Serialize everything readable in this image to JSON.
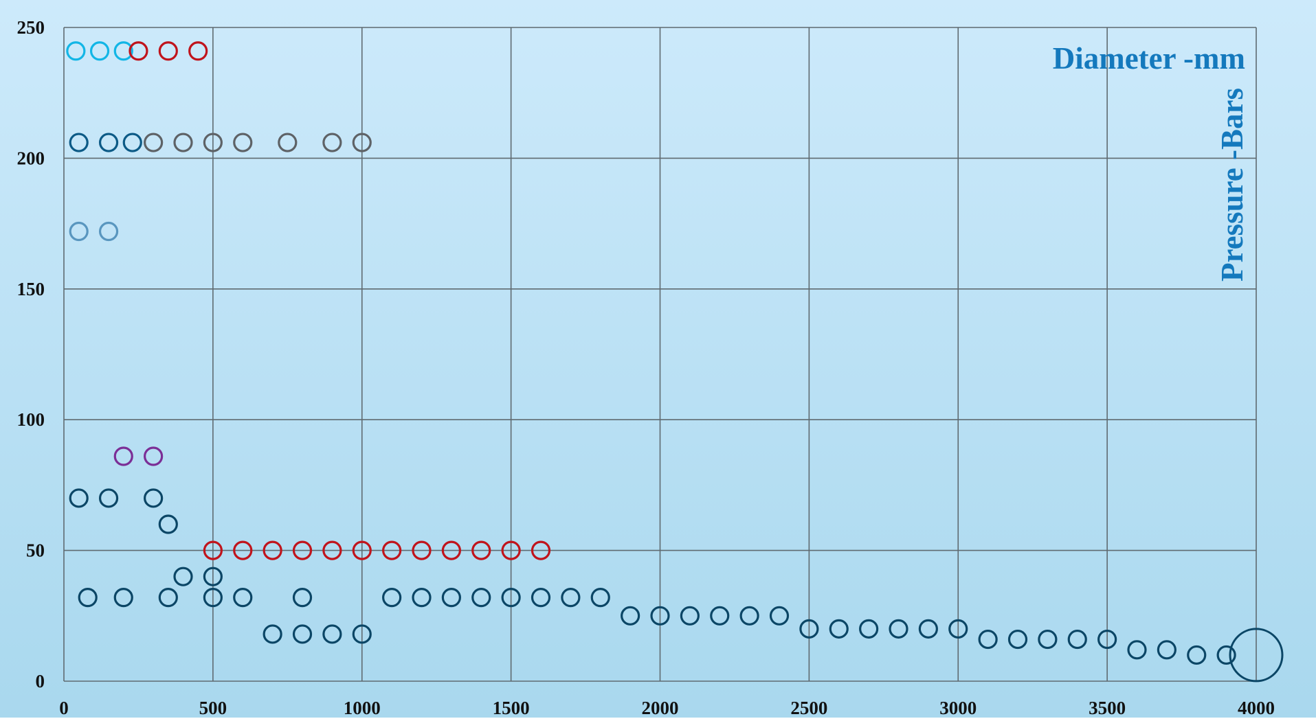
{
  "chart_data": {
    "type": "scatter",
    "title": "",
    "xlabel": "Diameter -mm",
    "ylabel": "Pressure -Bars",
    "xlim": [
      0,
      4000
    ],
    "ylim": [
      0,
      250
    ],
    "x_ticks": [
      "0",
      "500",
      "1000",
      "1500",
      "2000",
      "2500",
      "3000",
      "3500",
      "4000"
    ],
    "y_ticks": [
      "0",
      "50",
      "100",
      "150",
      "200",
      "250"
    ],
    "grid": true,
    "legend": "none",
    "colors": {
      "background_top": "#cdeafb",
      "background_bottom": "#a9d8ee",
      "grid": "#5f6a70",
      "axis_title": "#1479bd"
    },
    "series": [
      {
        "color": "#12b6e6",
        "points": [
          [
            40,
            241
          ],
          [
            120,
            241
          ],
          [
            200,
            241
          ]
        ]
      },
      {
        "color": "#c0141c",
        "points": [
          [
            250,
            241
          ],
          [
            350,
            241
          ],
          [
            450,
            241
          ]
        ]
      },
      {
        "color": "#0c5a86",
        "points": [
          [
            50,
            206
          ],
          [
            150,
            206
          ],
          [
            230,
            206
          ]
        ]
      },
      {
        "color": "#5e6266",
        "points": [
          [
            300,
            206
          ],
          [
            400,
            206
          ],
          [
            500,
            206
          ],
          [
            600,
            206
          ],
          [
            750,
            206
          ],
          [
            900,
            206
          ],
          [
            1000,
            206
          ]
        ]
      },
      {
        "color": "#5996bf",
        "points": [
          [
            50,
            172
          ],
          [
            150,
            172
          ]
        ]
      },
      {
        "color": "#7b2e96",
        "points": [
          [
            200,
            86
          ],
          [
            300,
            86
          ]
        ]
      },
      {
        "color": "#c0141c",
        "points": [
          [
            500,
            50
          ],
          [
            600,
            50
          ],
          [
            700,
            50
          ],
          [
            800,
            50
          ],
          [
            900,
            50
          ],
          [
            1000,
            50
          ],
          [
            1100,
            50
          ],
          [
            1200,
            50
          ],
          [
            1300,
            50
          ],
          [
            1400,
            50
          ],
          [
            1500,
            50
          ],
          [
            1600,
            50
          ]
        ]
      },
      {
        "color": "#0b4666",
        "points": [
          [
            50,
            70
          ],
          [
            150,
            70
          ],
          [
            300,
            70
          ],
          [
            350,
            60
          ],
          [
            400,
            40
          ],
          [
            500,
            40
          ],
          [
            80,
            32
          ],
          [
            200,
            32
          ],
          [
            350,
            32
          ],
          [
            500,
            32
          ],
          [
            600,
            32
          ],
          [
            800,
            32
          ],
          [
            1100,
            32
          ],
          [
            1200,
            32
          ],
          [
            1300,
            32
          ],
          [
            1400,
            32
          ],
          [
            1500,
            32
          ],
          [
            1600,
            32
          ],
          [
            1700,
            32
          ],
          [
            1800,
            32
          ],
          [
            700,
            18
          ],
          [
            800,
            18
          ],
          [
            900,
            18
          ],
          [
            1000,
            18
          ],
          [
            1900,
            25
          ],
          [
            2000,
            25
          ],
          [
            2100,
            25
          ],
          [
            2200,
            25
          ],
          [
            2300,
            25
          ],
          [
            2400,
            25
          ],
          [
            2500,
            20
          ],
          [
            2600,
            20
          ],
          [
            2700,
            20
          ],
          [
            2800,
            20
          ],
          [
            2900,
            20
          ],
          [
            3000,
            20
          ],
          [
            3100,
            16
          ],
          [
            3200,
            16
          ],
          [
            3300,
            16
          ],
          [
            3400,
            16
          ],
          [
            3500,
            16
          ],
          [
            3600,
            12
          ],
          [
            3700,
            12
          ],
          [
            3800,
            10
          ],
          [
            3900,
            10
          ]
        ]
      },
      {
        "color": "#0b4666",
        "size": "large",
        "points": [
          [
            4000,
            10
          ]
        ]
      }
    ]
  }
}
